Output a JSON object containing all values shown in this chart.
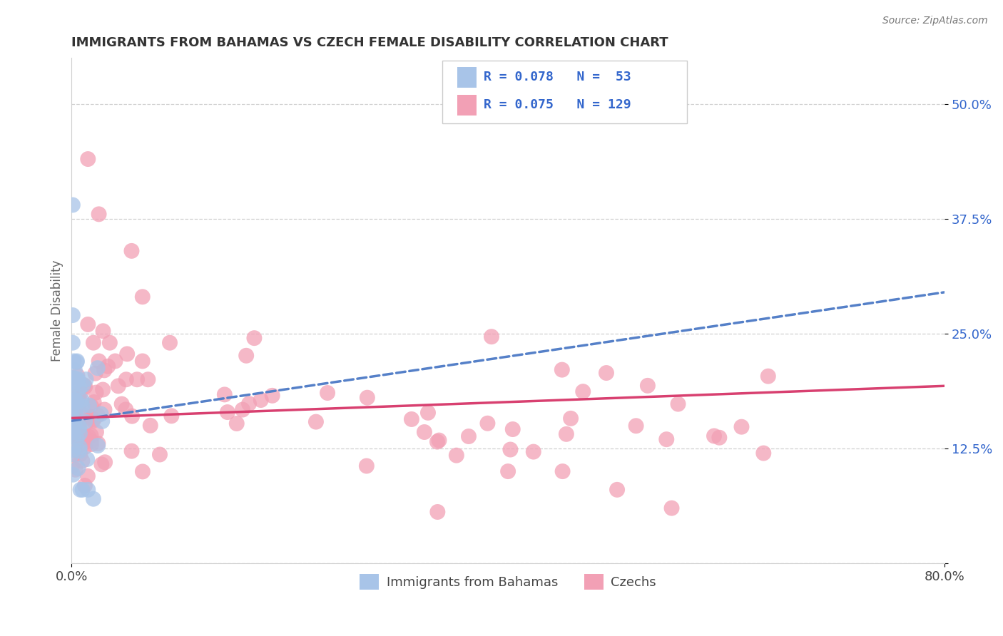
{
  "title": "IMMIGRANTS FROM BAHAMAS VS CZECH FEMALE DISABILITY CORRELATION CHART",
  "source": "Source: ZipAtlas.com",
  "ylabel": "Female Disability",
  "xlim": [
    0.0,
    0.8
  ],
  "ylim": [
    0.0,
    0.55
  ],
  "yticks": [
    0.0,
    0.125,
    0.25,
    0.375,
    0.5
  ],
  "ytick_labels": [
    "",
    "12.5%",
    "25.0%",
    "37.5%",
    "50.0%"
  ],
  "xticks": [
    0.0,
    0.8
  ],
  "xtick_labels": [
    "0.0%",
    "80.0%"
  ],
  "legend_line1": "R = 0.078   N =  53",
  "legend_line2": "R = 0.075   N = 129",
  "legend_label1": "Immigrants from Bahamas",
  "legend_label2": "Czechs",
  "color_blue": "#a8c4e8",
  "color_pink": "#f2a0b5",
  "trendline_blue_color": "#5580c8",
  "trendline_pink_color": "#d84070",
  "legend_text_color": "#3366cc",
  "title_color": "#333333",
  "source_color": "#777777",
  "grid_color": "#d0d0d0",
  "background_color": "#ffffff",
  "blue_trendline_start_y": 0.155,
  "blue_trendline_end_y": 0.295,
  "pink_trendline_start_y": 0.158,
  "pink_trendline_end_y": 0.193
}
